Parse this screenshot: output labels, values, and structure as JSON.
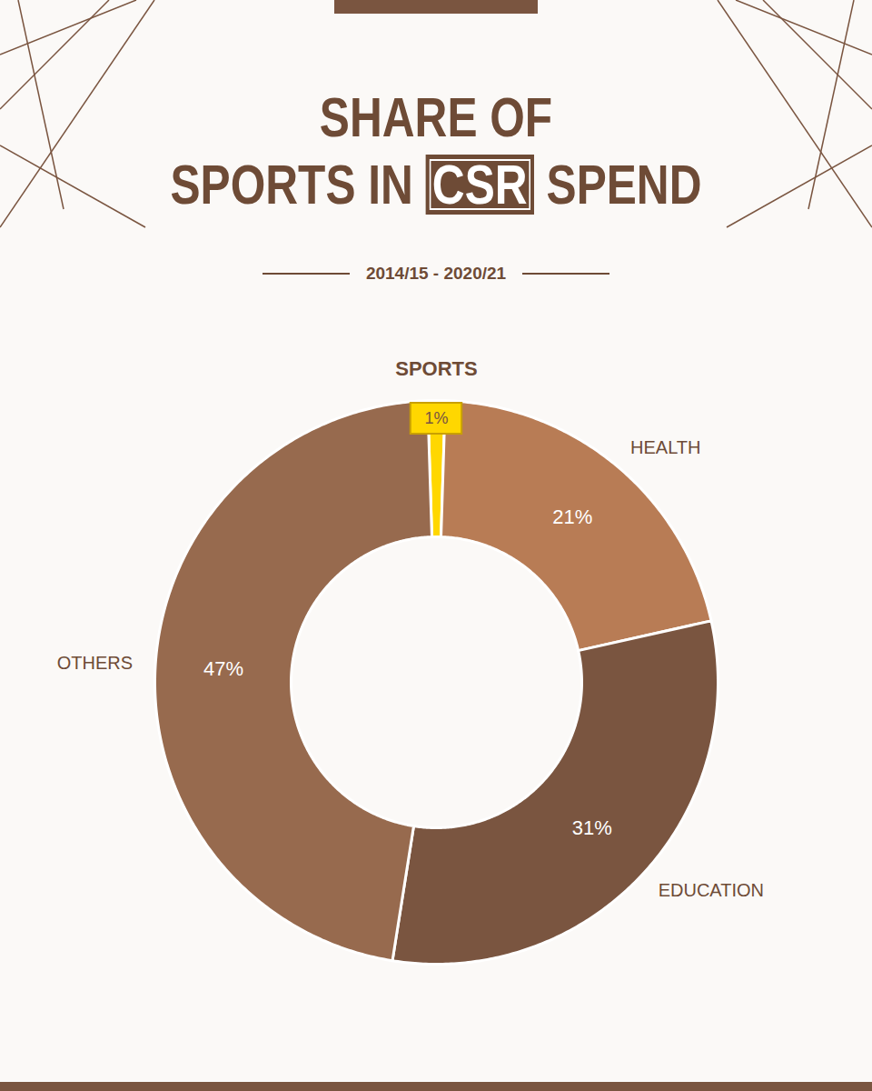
{
  "chart_data": {
    "type": "donut",
    "title": "SHARE OF SPORTS IN CSR SPEND",
    "subtitle": "2014/15 - 2020/21",
    "categories": [
      "SPORTS",
      "HEALTH",
      "EDUCATION",
      "OTHERS"
    ],
    "values": [
      1,
      21,
      31,
      47
    ],
    "value_labels": [
      "1%",
      "21%",
      "31%",
      "47%"
    ],
    "colors": [
      "#ffd700",
      "#b87c55",
      "#7a5540",
      "#976a4e"
    ],
    "data_labels": true,
    "tick_labels": false
  }
}
